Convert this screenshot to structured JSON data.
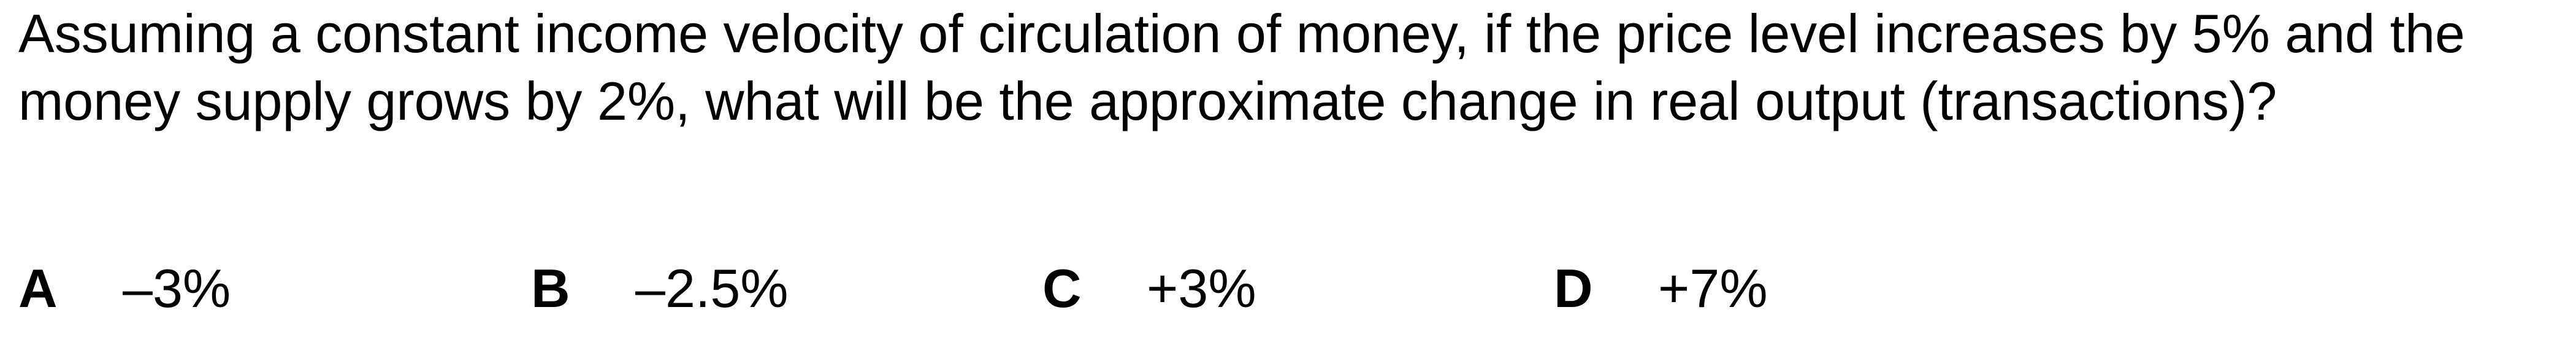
{
  "question": {
    "text": "Assuming a constant income velocity of circulation of money, if the price level increases by 5% and the money supply grows by 2%, what will be the approximate change in real output (transactions)?"
  },
  "options": [
    {
      "letter": "A",
      "text": "–3%"
    },
    {
      "letter": "B",
      "text": "–2.5%"
    },
    {
      "letter": "C",
      "text": "+3%"
    },
    {
      "letter": "D",
      "text": "+7%"
    }
  ]
}
